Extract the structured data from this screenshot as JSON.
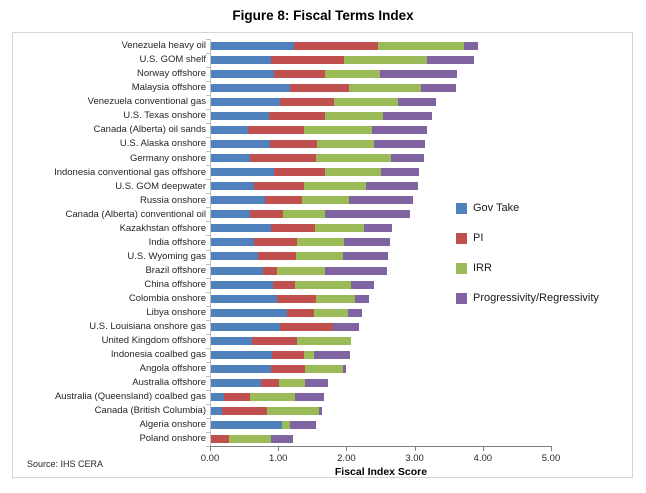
{
  "title": "Figure 8: Fiscal Terms Index",
  "source": "Source: IHS CERA",
  "chart_data": {
    "type": "bar",
    "orientation": "horizontal",
    "stacked": true,
    "title": "Figure 8: Fiscal Terms Index",
    "xlabel": "Fiscal Index Score",
    "ylabel": "",
    "xlim": [
      0,
      5
    ],
    "x_ticks": [
      "0.00",
      "1.00",
      "2.00",
      "3.00",
      "4.00",
      "5.00"
    ],
    "grid": false,
    "legend_position": "right",
    "categories": [
      "Venezuela heavy oil",
      "U.S. GOM shelf",
      "Norway offshore",
      "Malaysia offshore",
      "Venezuela conventional gas",
      "U.S. Texas onshore",
      "Canada (Alberta) oil sands",
      "U.S. Alaska onshore",
      "Germany onshore",
      "Indonesia conventional gas offshore",
      "U.S. GOM deepwater",
      "Russia onshore",
      "Canada (Alberta)  conventional oil",
      "Kazakhstan offshore",
      "India offshore",
      "U.S. Wyoming gas",
      "Brazil offshore",
      "China offshore",
      "Colombia onshore",
      "Libya onshore",
      "U.S. Louisiana onshore gas",
      "United Kingdom offshore",
      "Indonesia coalbed gas",
      "Angola offshore",
      "Australia offshore",
      "Australia (Queensland) coalbed gas",
      "Canada (British Columbia)",
      "Algeria onshore",
      "Poland onshore"
    ],
    "series": [
      {
        "name": "Gov Take",
        "color": "#4F81BD",
        "values": [
          1.23,
          0.9,
          0.94,
          1.18,
          1.02,
          0.87,
          0.55,
          0.88,
          0.58,
          0.94,
          0.64,
          0.81,
          0.59,
          0.89,
          0.64,
          0.7,
          0.77,
          0.92,
          0.98,
          1.13,
          1.03,
          0.61,
          0.91,
          0.9,
          0.75,
          0.2,
          0.18,
          1.05,
          0.0
        ]
      },
      {
        "name": "PI",
        "color": "#C0504D",
        "values": [
          1.24,
          1.07,
          0.74,
          0.86,
          0.8,
          0.81,
          0.83,
          0.69,
          0.97,
          0.74,
          0.74,
          0.54,
          0.48,
          0.65,
          0.63,
          0.56,
          0.21,
          0.33,
          0.57,
          0.39,
          0.78,
          0.67,
          0.47,
          0.49,
          0.26,
          0.39,
          0.65,
          0.0,
          0.28
        ]
      },
      {
        "name": "IRR",
        "color": "#9BBB59",
        "values": [
          1.25,
          1.21,
          0.82,
          1.05,
          0.94,
          0.86,
          1.0,
          0.83,
          1.1,
          0.83,
          0.91,
          0.69,
          0.61,
          0.72,
          0.69,
          0.69,
          0.7,
          0.82,
          0.58,
          0.51,
          0.0,
          0.79,
          0.15,
          0.56,
          0.39,
          0.65,
          0.77,
          0.13,
          0.61
        ]
      },
      {
        "name": "Progressivity/Regressivity",
        "color": "#8064A2",
        "values": [
          0.21,
          0.69,
          1.12,
          0.51,
          0.56,
          0.71,
          0.8,
          0.76,
          0.49,
          0.56,
          0.76,
          0.94,
          1.26,
          0.41,
          0.68,
          0.66,
          0.92,
          0.34,
          0.2,
          0.2,
          0.38,
          0.0,
          0.53,
          0.04,
          0.33,
          0.43,
          0.04,
          0.37,
          0.33
        ]
      }
    ]
  }
}
